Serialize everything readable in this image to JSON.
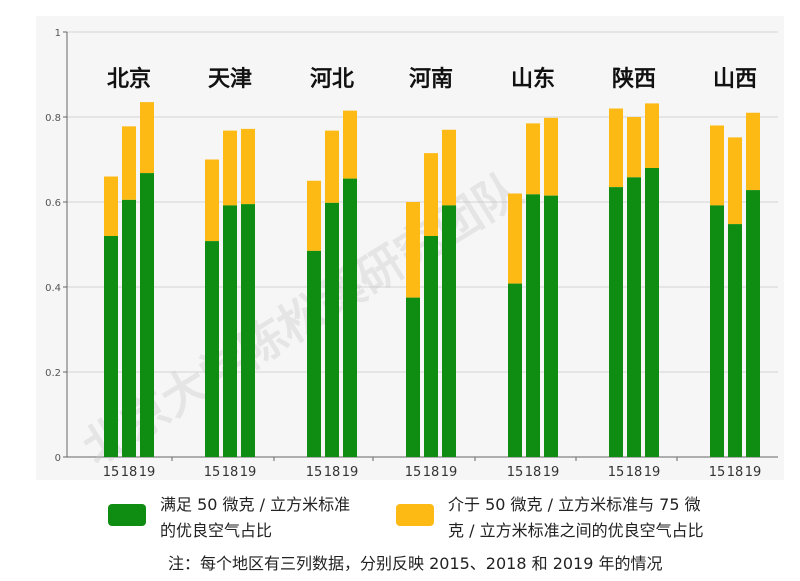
{
  "chart_data": {
    "type": "bar",
    "stacked": true,
    "grid": true,
    "yticks": [
      "0",
      "0.2",
      "0.4",
      "0.6",
      "0.8",
      "1"
    ],
    "ylim": [
      0,
      1
    ],
    "year_labels": [
      "15",
      "18",
      "19"
    ],
    "colors": {
      "green": "#0f8c12",
      "yellow": "#fdb914"
    },
    "regions": [
      {
        "name": "北京",
        "green": [
          0.52,
          0.605,
          0.668
        ],
        "total": [
          0.66,
          0.778,
          0.835
        ]
      },
      {
        "name": "天津",
        "green": [
          0.508,
          0.592,
          0.595
        ],
        "total": [
          0.7,
          0.768,
          0.772
        ]
      },
      {
        "name": "河北",
        "green": [
          0.485,
          0.598,
          0.655
        ],
        "total": [
          0.65,
          0.768,
          0.815
        ]
      },
      {
        "name": "河南",
        "green": [
          0.375,
          0.52,
          0.592
        ],
        "total": [
          0.6,
          0.715,
          0.77
        ]
      },
      {
        "name": "山东",
        "green": [
          0.408,
          0.618,
          0.615
        ],
        "total": [
          0.62,
          0.785,
          0.798
        ]
      },
      {
        "name": "陕西",
        "green": [
          0.635,
          0.658,
          0.68
        ],
        "total": [
          0.82,
          0.8,
          0.832
        ]
      },
      {
        "name": "山西",
        "green": [
          0.592,
          0.548,
          0.628
        ],
        "total": [
          0.78,
          0.752,
          0.81
        ]
      }
    ],
    "legend": [
      {
        "color": "#0f8c12",
        "lines": [
          "满足 50 微克 / 立方米标准",
          "的优良空气占比"
        ]
      },
      {
        "color": "#fdb914",
        "lines": [
          "介于 50 微克 / 立方米标准与 75 微",
          "克 / 立方米标准之间的优良空气占比"
        ]
      }
    ],
    "note": "注：每个地区有三列数据，分别反映 2015、2018 和 2019 年的情况",
    "watermark": "北京大学陈松蹊研究团队"
  }
}
